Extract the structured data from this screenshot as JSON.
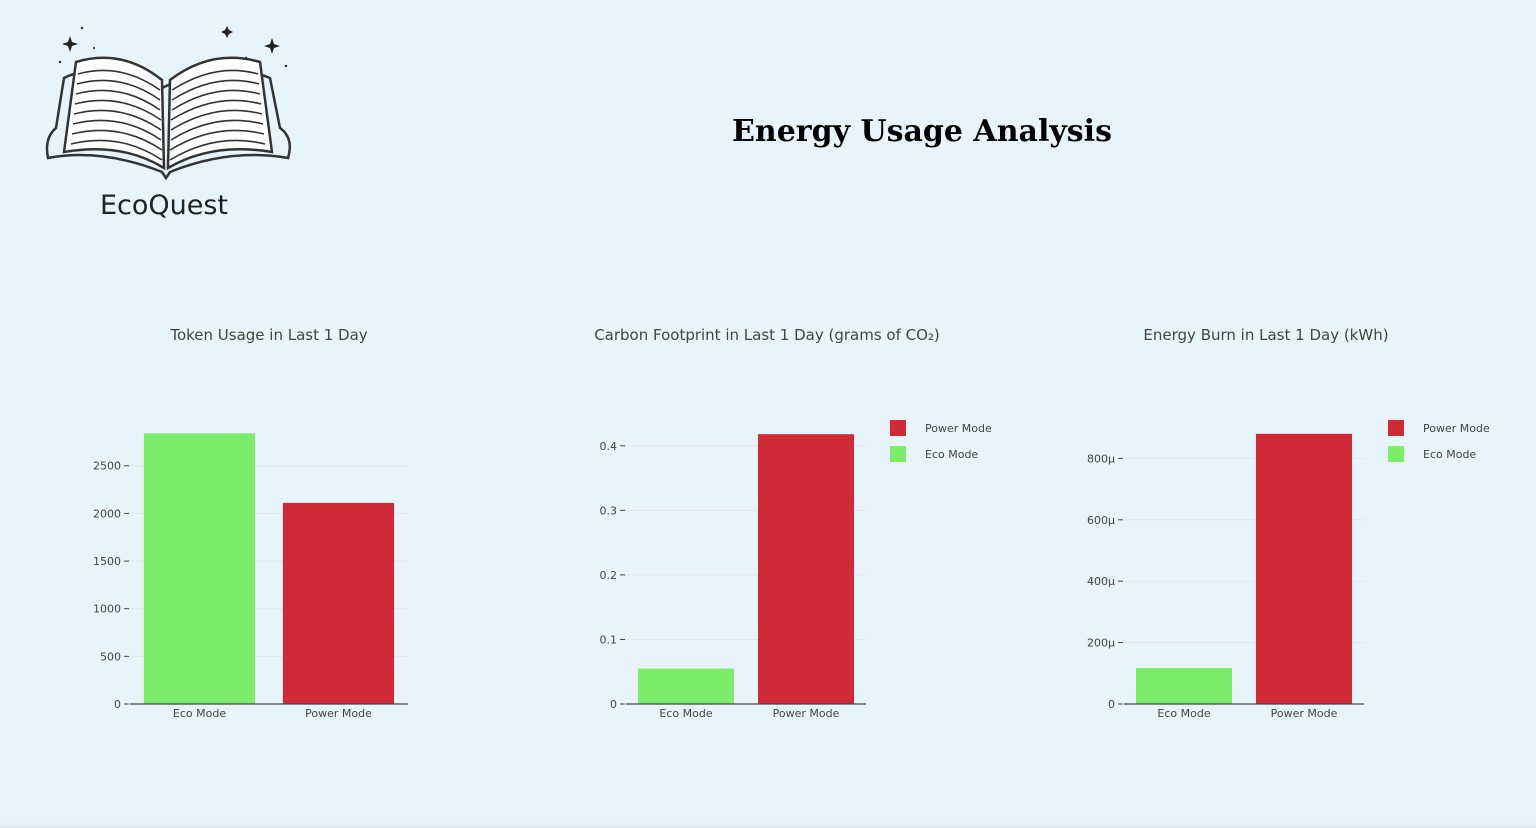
{
  "brand": {
    "name": "EcoQuest",
    "logo_icon": "open-book-icon"
  },
  "page": {
    "title": "Energy Usage Analysis"
  },
  "colors": {
    "background": "#e8f4fc",
    "eco": "#7ced6a",
    "power": "#cf2a35",
    "grid": "#e1e6ea",
    "axis": "#444444"
  },
  "chart_data": [
    {
      "type": "bar",
      "title": "Token Usage in Last 1 Day",
      "categories": [
        "Eco Mode",
        "Power Mode"
      ],
      "values": [
        2840,
        2110
      ],
      "bar_colors": [
        "#7ced6a",
        "#cf2a35"
      ],
      "yticks": [
        0,
        500,
        1000,
        1500,
        2000,
        2500
      ],
      "ytick_labels": [
        "0",
        "500",
        "1000",
        "1500",
        "2000",
        "2500"
      ],
      "ylim": [
        0,
        2980
      ],
      "grid": true,
      "legend": null
    },
    {
      "type": "bar",
      "title": "Carbon Footprint in Last 1 Day (grams of CO₂)",
      "categories": [
        "Eco Mode",
        "Power Mode"
      ],
      "values": [
        0.055,
        0.418
      ],
      "bar_colors": [
        "#7ced6a",
        "#cf2a35"
      ],
      "yticks": [
        0,
        0.1,
        0.2,
        0.3,
        0.4
      ],
      "ytick_labels": [
        "0",
        "0.1",
        "0.2",
        "0.3",
        "0.4"
      ],
      "ylim": [
        0,
        0.44
      ],
      "grid": true,
      "legend": {
        "position": "top-right",
        "entries": [
          {
            "name": "Power Mode",
            "color": "#cf2a35"
          },
          {
            "name": "Eco Mode",
            "color": "#7ced6a"
          }
        ]
      }
    },
    {
      "type": "bar",
      "title": "Energy Burn in Last 1 Day (kWh)",
      "categories": [
        "Eco Mode",
        "Power Mode"
      ],
      "values": [
        0.000117,
        0.00088
      ],
      "bar_colors": [
        "#7ced6a",
        "#cf2a35"
      ],
      "yticks": [
        0,
        0.0002,
        0.0004,
        0.0006,
        0.0008
      ],
      "ytick_labels": [
        "0",
        "200μ",
        "400μ",
        "600μ",
        "800μ"
      ],
      "ylim": [
        0,
        0.000925
      ],
      "grid": true,
      "legend": {
        "position": "top-right",
        "entries": [
          {
            "name": "Power Mode",
            "color": "#cf2a35"
          },
          {
            "name": "Eco Mode",
            "color": "#7ced6a"
          }
        ]
      }
    }
  ]
}
